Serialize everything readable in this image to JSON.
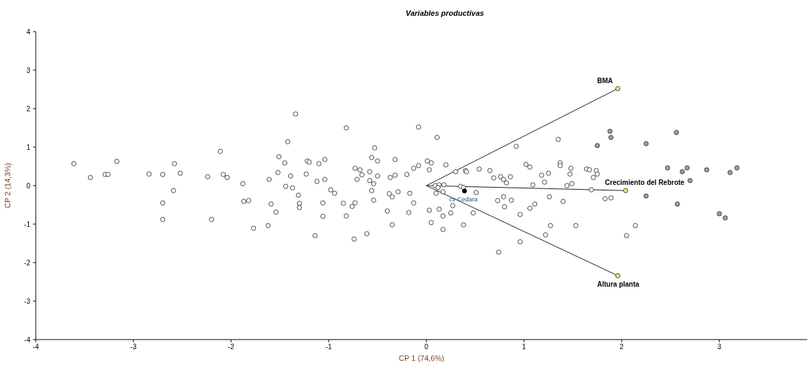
{
  "chart_data": {
    "type": "scatter",
    "title": "Variables productivas",
    "xlabel": "CP 1 (74,6%)",
    "ylabel": "CP 2 (14,3%)",
    "xlim": [
      -4,
      3.9
    ],
    "ylim": [
      -4,
      4
    ],
    "xticks": [
      -4,
      -3,
      -2,
      -1,
      0,
      1,
      2,
      3
    ],
    "yticks": [
      -4,
      -3,
      -2,
      -1,
      0,
      1,
      2,
      3,
      4
    ],
    "grid": false,
    "marker": "circle",
    "annotations": [
      {
        "text": "cv Cedara",
        "x": 0.39,
        "y": -0.14
      }
    ],
    "series": [
      {
        "color": "#ffffff",
        "x": [
          -3.61,
          -3.44,
          -3.29,
          -3.26,
          -3.17,
          -2.84,
          -2.7,
          -2.7,
          -2.7,
          -1.34,
          -1.42,
          -2.11,
          -1.51,
          -2.58,
          -1.45,
          -1.52,
          -2.52,
          -2.24,
          -2.08,
          -2.04,
          -1.39,
          -1.88,
          -1.61,
          -1.44,
          -1.37,
          -2.59,
          -1.87,
          -1.82,
          -1.59,
          -1.54,
          -2.2,
          -1.77,
          -1.62,
          -0.82,
          -0.08,
          -0.53,
          -0.56,
          -0.5,
          -0.32,
          -1.22,
          -1.2,
          -1.1,
          -1.04,
          -0.73,
          -0.68,
          -0.66,
          -0.71,
          -0.58,
          -0.58,
          -0.54,
          -0.5,
          -0.37,
          -0.32,
          -0.2,
          -0.13,
          -0.08,
          -1.23,
          -1.12,
          -1.04,
          -1.31,
          -1.3,
          -1.3,
          -0.98,
          -0.94,
          -0.56,
          -0.54,
          -0.38,
          -0.35,
          -0.29,
          -0.17,
          -0.13,
          -1.06,
          -0.85,
          -0.73,
          -0.76,
          -0.82,
          -1.06,
          -0.4,
          -0.18,
          -0.35,
          -1.14,
          -0.74,
          -0.61,
          0.11,
          0.92,
          0.01,
          0.05,
          0.2,
          0.03,
          0.3,
          0.4,
          0.41,
          0.54,
          0.65,
          0.69,
          0.76,
          0.79,
          0.82,
          0.86,
          1.02,
          1.06,
          1.18,
          1.25,
          1.21,
          1.09,
          0.09,
          0.13,
          0.18,
          0.12,
          0.1,
          0.17,
          0.35,
          0.38,
          0.51,
          0.27,
          0.03,
          0.13,
          0.17,
          0.25,
          0.48,
          0.05,
          0.17,
          0.38,
          0.79,
          0.73,
          0.87,
          0.8,
          1.06,
          1.11,
          0.96,
          1.26,
          0.96,
          0.74,
          1.27,
          1.22,
          1.35,
          1.37,
          1.37,
          1.48,
          1.47,
          1.64,
          1.67,
          1.74,
          1.75,
          1.71,
          1.49,
          1.44,
          1.69,
          1.83,
          1.89,
          1.4,
          1.53,
          2.14,
          2.05
        ],
        "values": [
          0.57,
          0.21,
          0.29,
          0.29,
          0.63,
          0.3,
          0.29,
          -0.45,
          -0.88,
          1.86,
          1.14,
          0.89,
          0.75,
          0.57,
          0.59,
          0.34,
          0.32,
          0.23,
          0.29,
          0.21,
          0.25,
          0.05,
          0.16,
          -0.02,
          -0.06,
          -0.13,
          -0.41,
          -0.39,
          -0.48,
          -0.69,
          -0.88,
          -1.11,
          -1.04,
          1.5,
          1.52,
          0.98,
          0.73,
          0.64,
          0.68,
          0.64,
          0.61,
          0.57,
          0.68,
          0.45,
          0.41,
          0.28,
          0.16,
          0.36,
          0.13,
          0.05,
          0.25,
          0.21,
          0.27,
          0.29,
          0.45,
          0.52,
          0.3,
          0.11,
          0.16,
          -0.25,
          -0.46,
          -0.57,
          -0.11,
          -0.2,
          -0.13,
          -0.38,
          -0.21,
          -0.29,
          -0.16,
          -0.2,
          -0.45,
          -0.45,
          -0.46,
          -0.45,
          -0.54,
          -0.79,
          -0.8,
          -0.66,
          -0.7,
          -1.02,
          -1.3,
          -1.39,
          -1.25,
          1.25,
          1.02,
          0.64,
          0.59,
          0.54,
          0.41,
          0.36,
          0.39,
          0.36,
          0.43,
          0.39,
          0.2,
          0.23,
          0.16,
          0.07,
          0.23,
          0.55,
          0.48,
          0.27,
          0.32,
          0.09,
          0.02,
          0,
          0.02,
          0.02,
          -0.05,
          -0.2,
          -0.16,
          -0.02,
          -0.05,
          -0.18,
          -0.52,
          -0.64,
          -0.61,
          -0.79,
          -0.71,
          -0.71,
          -0.96,
          -1.14,
          -1.02,
          -0.29,
          -0.39,
          -0.38,
          -0.55,
          -0.59,
          -0.48,
          -0.75,
          -0.29,
          -1.46,
          -1.73,
          -1.04,
          -1.28,
          1.2,
          0.59,
          0.52,
          0.45,
          0.3,
          0.43,
          0.41,
          0.39,
          0.3,
          0.21,
          0.05,
          0,
          -0.11,
          -0.34,
          -0.32,
          -0.41,
          -1.04,
          -1.04,
          -1.3
        ]
      },
      {
        "color": "#a0a0a0",
        "x": [
          1.88,
          1.89,
          1.75,
          2.25,
          2.56,
          2.47,
          2.62,
          2.67,
          2.87,
          3.18,
          3.11,
          2.7,
          2.25,
          2.57,
          3.0,
          3.06
        ],
        "values": [
          1.41,
          1.25,
          1.04,
          1.09,
          1.38,
          0.46,
          0.36,
          0.46,
          0.41,
          0.46,
          0.34,
          0.13,
          -0.27,
          -0.48,
          -0.73,
          -0.84
        ]
      },
      {
        "color": "#000000",
        "x": [
          0.39
        ],
        "values": [
          -0.14
        ]
      },
      {
        "type": "line",
        "name": "BMA",
        "color": "#000000",
        "marker": "none",
        "x": [
          0,
          1.96
        ],
        "values": [
          0,
          2.52
        ]
      },
      {
        "type": "line",
        "name": "Crecimiento del Rebrote",
        "color": "#000000",
        "marker": "none",
        "x": [
          0,
          2.04
        ],
        "values": [
          0,
          -0.13
        ]
      },
      {
        "type": "line",
        "name": "Altura planta",
        "color": "#000000",
        "marker": "none",
        "x": [
          0,
          1.96
        ],
        "values": [
          0,
          -2.34
        ]
      },
      {
        "color": "#f0e878",
        "x": [
          1.96,
          2.04,
          1.96
        ],
        "values": [
          2.52,
          -0.13,
          -2.34
        ]
      }
    ]
  }
}
